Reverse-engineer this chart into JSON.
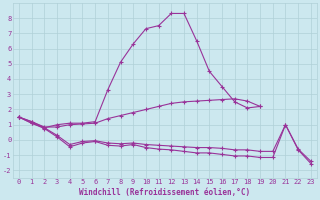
{
  "background_color": "#cce8ef",
  "grid_color": "#b0d0d8",
  "line_color": "#993399",
  "marker": "+",
  "markersize": 3,
  "linewidth": 0.8,
  "xlim": [
    -0.5,
    23.5
  ],
  "ylim": [
    -2.5,
    9.0
  ],
  "xlabel": "Windchill (Refroidissement éolien,°C)",
  "xlabel_fontsize": 5.5,
  "tick_fontsize": 5.0,
  "series": [
    {
      "x": [
        0,
        1,
        2,
        3,
        4,
        5,
        6,
        7,
        8,
        9,
        10,
        11,
        12,
        13,
        14,
        15,
        16,
        17,
        18,
        19
      ],
      "y": [
        1.5,
        1.2,
        0.8,
        1.0,
        1.1,
        1.1,
        1.2,
        3.3,
        5.1,
        6.3,
        7.3,
        7.5,
        8.3,
        8.3,
        6.5,
        4.5,
        3.5,
        2.5,
        2.1,
        2.2
      ]
    },
    {
      "x": [
        0,
        1,
        2,
        3,
        4,
        5,
        6,
        7,
        8,
        9,
        10,
        11,
        12,
        13,
        14,
        15,
        16,
        17,
        18,
        19
      ],
      "y": [
        1.5,
        1.2,
        0.85,
        0.85,
        1.0,
        1.05,
        1.1,
        1.4,
        1.6,
        1.8,
        2.0,
        2.2,
        2.4,
        2.5,
        2.55,
        2.6,
        2.65,
        2.7,
        2.55,
        2.2
      ]
    },
    {
      "x": [
        0,
        1,
        2,
        3,
        4,
        5,
        6,
        7,
        8,
        9,
        10,
        11,
        12,
        13,
        14,
        15,
        16,
        17,
        18,
        19,
        20,
        21,
        22,
        23
      ],
      "y": [
        1.5,
        1.1,
        0.8,
        0.3,
        -0.3,
        -0.1,
        -0.05,
        -0.2,
        -0.25,
        -0.2,
        -0.3,
        -0.35,
        -0.4,
        -0.45,
        -0.5,
        -0.5,
        -0.55,
        -0.65,
        -0.65,
        -0.75,
        -0.75,
        1.0,
        -0.6,
        -1.4
      ]
    },
    {
      "x": [
        0,
        1,
        2,
        3,
        4,
        5,
        6,
        7,
        8,
        9,
        10,
        11,
        12,
        13,
        14,
        15,
        16,
        17,
        18,
        19,
        20,
        21,
        22,
        23
      ],
      "y": [
        1.5,
        1.1,
        0.75,
        0.2,
        -0.45,
        -0.2,
        -0.1,
        -0.35,
        -0.4,
        -0.3,
        -0.5,
        -0.6,
        -0.65,
        -0.75,
        -0.85,
        -0.85,
        -0.95,
        -1.05,
        -1.05,
        -1.15,
        -1.15,
        1.0,
        -0.65,
        -1.55
      ]
    }
  ]
}
